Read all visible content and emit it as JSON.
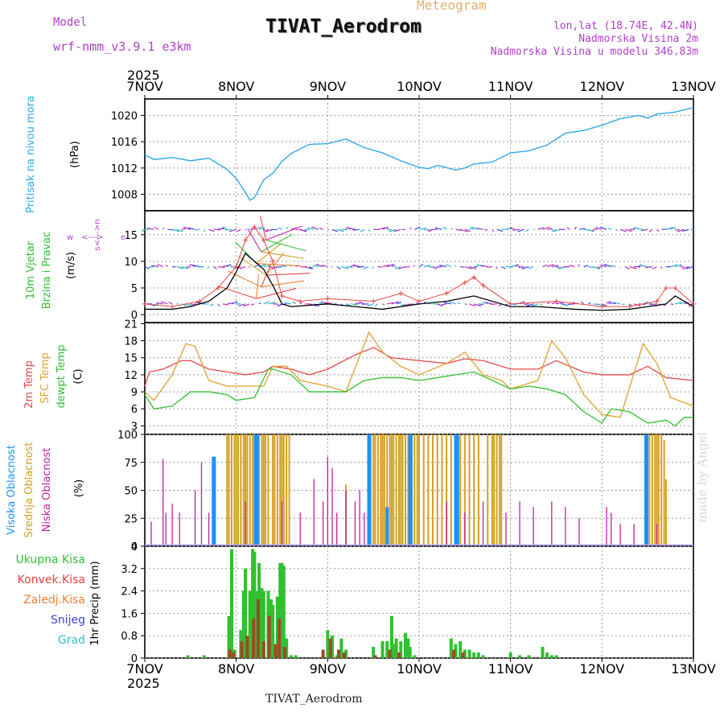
{
  "header": {
    "model_label": "Model",
    "model_name": "wrf-nmm_v3.9.1 e3km",
    "title": "TIVAT_Aerodrom",
    "subtitle": "Meteogram",
    "lonlat": "lon,lat (18.74E, 42.4N)",
    "altitude": "Nadmorska Visina 2m",
    "model_altitude": "Nadmorska Visina u modelu 346.83m"
  },
  "footer": {
    "station": "TIVAT_Aerodrom",
    "credit": "made by Angel"
  },
  "time_axis": {
    "year": "2025",
    "labels": [
      "7NOV",
      "8NOV",
      "9NOV",
      "10NOV",
      "11NOV",
      "12NOV",
      "13NOV"
    ],
    "range_days": [
      0,
      6
    ]
  },
  "colors": {
    "pressure": "#30a8e8",
    "temp": "#e84848",
    "sfc": "#e0a030",
    "dewpt": "#30c030",
    "high_cloud": "#1e90ff",
    "mid_cloud": "#d4a020",
    "low_cloud": "#c020a0",
    "precip_total": "#30c030",
    "precip_conv": "#e84040",
    "precip_frz": "#f08030",
    "snow": "#4040e0",
    "grad": "#30c0c0",
    "wind_text": "#30c030",
    "cloud_text_mid": "#d4a020"
  },
  "chart_data": [
    {
      "type": "line",
      "name": "pressure",
      "ylabel": "Pritisak na nivou mora",
      "unit": "(hPa)",
      "yticks": [
        1008,
        1012,
        1016,
        1020
      ],
      "ylim": [
        1005.5,
        1022.5
      ],
      "series": [
        {
          "name": "MSLP",
          "x": [
            0,
            0.1,
            0.3,
            0.5,
            0.7,
            0.9,
            1.0,
            1.1,
            1.15,
            1.2,
            1.3,
            1.4,
            1.5,
            1.6,
            1.8,
            2.0,
            2.2,
            2.4,
            2.6,
            2.8,
            3.0,
            3.1,
            3.2,
            3.4,
            3.5,
            3.6,
            3.8,
            4.0,
            4.2,
            4.4,
            4.6,
            4.8,
            5.0,
            5.2,
            5.4,
            5.5,
            5.6,
            5.8,
            6.0
          ],
          "values": [
            1014.0,
            1013.3,
            1013.6,
            1013.1,
            1013.5,
            1011.8,
            1010.4,
            1008.3,
            1007.1,
            1007.5,
            1010.2,
            1011.2,
            1013.0,
            1014.2,
            1015.6,
            1015.7,
            1016.4,
            1015.1,
            1014.3,
            1013.1,
            1012.1,
            1011.9,
            1012.4,
            1011.7,
            1012.0,
            1012.6,
            1012.9,
            1014.3,
            1014.6,
            1015.5,
            1017.3,
            1017.7,
            1018.5,
            1019.5,
            1020.0,
            1019.6,
            1020.2,
            1020.5,
            1021.2
          ]
        }
      ]
    },
    {
      "type": "line",
      "name": "wind",
      "ylabel": "10m Vjetar",
      "ylabel2": "Brzina i Pravac",
      "unit": "(m/s)",
      "legend": [
        "w",
        "e",
        "<--->",
        "s<--->n"
      ],
      "yticks": [
        0,
        5,
        10,
        15
      ],
      "ylim": [
        -1.5,
        19.5
      ],
      "barb_rows": [
        2,
        9,
        16
      ],
      "series": [
        {
          "name": "speed",
          "x": [
            0,
            0.3,
            0.5,
            0.7,
            0.9,
            1.0,
            1.1,
            1.2,
            1.3,
            1.4,
            1.5,
            1.6,
            2.0,
            2.3,
            2.6,
            3.0,
            3.3,
            3.6,
            4.0,
            4.3,
            4.7,
            5.0,
            5.3,
            5.7,
            5.8,
            6.0
          ],
          "values": [
            1.0,
            1.0,
            1.5,
            2.5,
            5.0,
            8.0,
            11.5,
            10.0,
            8.5,
            5.5,
            2.0,
            1.5,
            2.0,
            1.5,
            1.0,
            2.0,
            2.5,
            3.5,
            1.5,
            1.5,
            1.0,
            0.8,
            1.0,
            2.0,
            3.5,
            1.5
          ]
        },
        {
          "name": "gust",
          "x": [
            0,
            0.3,
            0.6,
            0.8,
            1.0,
            1.1,
            1.2,
            1.3,
            1.4,
            1.5,
            1.7,
            2.0,
            2.5,
            2.8,
            3.0,
            3.3,
            3.5,
            3.6,
            3.7,
            4.0,
            4.5,
            5.0,
            5.3,
            5.6,
            5.7,
            5.8,
            6.0
          ],
          "values": [
            2.0,
            1.5,
            2.5,
            5.0,
            9.0,
            14.0,
            16.5,
            14.0,
            10.0,
            3.5,
            2.5,
            3.0,
            2.5,
            4.0,
            2.5,
            4.0,
            6.0,
            7.0,
            5.5,
            2.0,
            2.5,
            1.5,
            1.5,
            2.5,
            5.0,
            5.0,
            2.0
          ]
        }
      ]
    },
    {
      "type": "line",
      "name": "temperature",
      "ylabel": "2m Temp",
      "ylabel2": "SFC Temp",
      "ylabel3": "dewpt Temp",
      "unit": "(C)",
      "yticks": [
        3,
        6,
        9,
        12,
        15,
        18,
        21
      ],
      "ylim": [
        1.5,
        21.2
      ],
      "series": [
        {
          "name": "2m Temp",
          "x": [
            0,
            0.05,
            0.2,
            0.4,
            0.5,
            0.7,
            0.9,
            1.1,
            1.3,
            1.4,
            1.6,
            1.8,
            2.0,
            2.3,
            2.5,
            2.7,
            3.0,
            3.3,
            3.5,
            3.7,
            4.0,
            4.3,
            4.5,
            4.8,
            5.0,
            5.3,
            5.5,
            5.7,
            6.0
          ],
          "values": [
            10.0,
            12.5,
            13.0,
            14.5,
            14.5,
            13.0,
            12.5,
            12.0,
            12.5,
            13.5,
            13.0,
            12.0,
            13.0,
            15.5,
            16.8,
            15.0,
            14.5,
            14.0,
            14.8,
            14.5,
            13.0,
            13.0,
            14.5,
            12.5,
            12.0,
            12.0,
            13.5,
            11.5,
            11.0
          ]
        },
        {
          "name": "SFC Temp",
          "x": [
            0,
            0.1,
            0.3,
            0.45,
            0.55,
            0.7,
            0.9,
            1.1,
            1.3,
            1.4,
            1.55,
            1.7,
            2.0,
            2.2,
            2.45,
            2.6,
            2.8,
            3.0,
            3.3,
            3.5,
            3.7,
            3.9,
            4.0,
            4.3,
            4.45,
            4.6,
            4.8,
            5.0,
            5.2,
            5.45,
            5.6,
            5.75,
            6.0
          ],
          "values": [
            9.0,
            7.5,
            12.0,
            17.5,
            17.0,
            11.0,
            10.0,
            10.0,
            10.0,
            13.5,
            13.5,
            11.0,
            10.0,
            9.0,
            19.5,
            16.0,
            13.5,
            12.0,
            14.0,
            16.0,
            12.0,
            11.0,
            9.5,
            11.0,
            18.0,
            15.0,
            8.5,
            5.0,
            4.5,
            17.5,
            14.0,
            8.0,
            6.5
          ]
        },
        {
          "name": "dewpt Temp",
          "x": [
            0,
            0.1,
            0.3,
            0.5,
            0.7,
            0.9,
            1.0,
            1.2,
            1.35,
            1.4,
            1.6,
            1.8,
            2.0,
            2.2,
            2.4,
            2.6,
            2.8,
            3.0,
            3.2,
            3.4,
            3.6,
            3.8,
            4.0,
            4.2,
            4.4,
            4.6,
            4.8,
            5.0,
            5.1,
            5.3,
            5.5,
            5.7,
            5.8,
            5.9,
            6.0
          ],
          "values": [
            8.5,
            6.0,
            6.5,
            9.0,
            9.0,
            8.5,
            7.5,
            8.0,
            13.0,
            13.0,
            12.0,
            9.0,
            9.0,
            9.0,
            11.0,
            11.5,
            11.5,
            11.0,
            11.5,
            12.0,
            12.5,
            11.0,
            9.5,
            10.0,
            9.5,
            8.5,
            5.5,
            3.5,
            6.0,
            5.5,
            3.5,
            4.0,
            3.0,
            4.5,
            4.5
          ]
        }
      ]
    },
    {
      "type": "bar",
      "name": "clouds",
      "ylabel": "Visoka Oblacnost",
      "ylabel2": "Srednja Oblacnost",
      "ylabel3": "Niska Oblacnost",
      "unit": "(%)",
      "yticks": [
        0,
        25,
        50,
        75,
        100
      ],
      "ylim": [
        0,
        100
      ],
      "series": [
        {
          "name": "Visoka Oblacnost (high)",
          "x": [
            0.75,
            0.76,
            1.21,
            1.22,
            1.23,
            2.45,
            2.46,
            2.65,
            2.9,
            2.91,
            3.4,
            3.41,
            3.42,
            5.48,
            5.49
          ],
          "values": [
            80,
            80,
            100,
            100,
            100,
            100,
            100,
            35,
            100,
            100,
            100,
            100,
            100,
            100,
            100
          ]
        },
        {
          "name": "Srednja Oblacnost (mid)",
          "x": [
            0.9,
            0.92,
            0.95,
            0.98,
            1.0,
            1.02,
            1.05,
            1.08,
            1.1,
            1.12,
            1.15,
            1.18,
            1.2,
            1.25,
            1.28,
            1.3,
            1.32,
            1.35,
            1.4,
            1.42,
            1.45,
            1.48,
            1.5,
            1.52,
            1.55,
            1.58,
            2.2,
            2.45,
            2.5,
            2.52,
            2.55,
            2.58,
            2.6,
            2.62,
            2.65,
            2.68,
            2.7,
            2.72,
            2.75,
            2.78,
            2.8,
            2.82,
            2.85,
            2.88,
            2.9,
            2.92,
            2.95,
            2.98,
            3.0,
            3.05,
            3.1,
            3.15,
            3.2,
            3.25,
            3.3,
            3.35,
            3.4,
            3.45,
            3.5,
            3.55,
            3.6,
            3.65,
            3.75,
            3.8,
            3.82,
            3.85,
            3.88,
            3.9,
            5.5,
            5.52,
            5.55,
            5.58,
            5.6,
            5.62,
            5.65,
            5.68,
            5.7
          ],
          "values": [
            100,
            100,
            100,
            100,
            100,
            100,
            100,
            100,
            100,
            100,
            100,
            100,
            100,
            100,
            100,
            100,
            100,
            100,
            100,
            100,
            100,
            100,
            100,
            100,
            100,
            100,
            55,
            100,
            100,
            100,
            100,
            100,
            100,
            100,
            100,
            100,
            100,
            100,
            100,
            100,
            100,
            100,
            100,
            100,
            100,
            100,
            100,
            100,
            100,
            100,
            100,
            100,
            100,
            100,
            100,
            100,
            100,
            100,
            100,
            100,
            100,
            100,
            100,
            100,
            100,
            100,
            100,
            100,
            100,
            100,
            100,
            100,
            100,
            100,
            100,
            95,
            60
          ]
        },
        {
          "name": "Niska Oblacnost (low)",
          "x": [
            0.07,
            0.2,
            0.23,
            0.3,
            0.38,
            0.55,
            0.62,
            0.7,
            1.1,
            1.5,
            1.7,
            1.85,
            1.95,
            2.0,
            2.05,
            2.1,
            2.2,
            2.3,
            2.35,
            2.4,
            3.3,
            3.5,
            3.7,
            3.95,
            4.1,
            4.25,
            4.45,
            4.6,
            4.75,
            5.05,
            5.1,
            5.2,
            5.35,
            5.6
          ],
          "values": [
            22,
            78,
            30,
            38,
            30,
            50,
            75,
            30,
            40,
            40,
            30,
            60,
            40,
            80,
            70,
            30,
            50,
            40,
            50,
            30,
            40,
            30,
            40,
            30,
            40,
            35,
            40,
            35,
            25,
            35,
            30,
            20,
            20,
            20
          ]
        }
      ]
    },
    {
      "type": "bar",
      "name": "precipitation",
      "legend": [
        "Ukupna Kisa",
        "Konvek.Kisa",
        "Zaledj.Kisa",
        "Snijeg",
        "Grad"
      ],
      "unit": "1hr Precip (mm)",
      "yticks": [
        0,
        0.8,
        1.6,
        2.4,
        3.2,
        4
      ],
      "ylim": [
        0,
        4.0
      ],
      "series": [
        {
          "name": "Ukupna Kisa",
          "x": [
            0.47,
            0.65,
            0.92,
            0.95,
            0.98,
            1.05,
            1.08,
            1.1,
            1.15,
            1.18,
            1.2,
            1.22,
            1.25,
            1.28,
            1.3,
            1.35,
            1.38,
            1.4,
            1.42,
            1.45,
            1.48,
            1.5,
            1.52,
            1.55,
            1.6,
            1.65,
            2.0,
            2.05,
            2.1,
            2.15,
            2.2,
            2.5,
            2.6,
            2.65,
            2.7,
            2.72,
            2.75,
            2.8,
            2.85,
            2.88,
            2.9,
            2.95,
            3.35,
            3.4,
            3.45,
            3.5,
            3.55,
            3.6,
            3.65,
            3.7,
            4.0,
            4.1,
            4.2,
            4.35,
            4.4,
            4.45,
            4.5
          ],
          "values": [
            0.1,
            0.1,
            1.5,
            3.9,
            0.3,
            1.0,
            2.4,
            3.2,
            2.4,
            3.9,
            3.8,
            2.4,
            3.4,
            2.5,
            2.4,
            2.4,
            2.1,
            1.9,
            0.3,
            2.2,
            3.4,
            3.4,
            3.3,
            0.7,
            0.1,
            0.1,
            1.0,
            0.8,
            0.1,
            0.7,
            0.3,
            0.4,
            0.6,
            0.6,
            1.5,
            0.5,
            0.7,
            0.6,
            0.9,
            0.7,
            0.4,
            0.1,
            0.7,
            0.5,
            0.6,
            0.3,
            0.3,
            0.2,
            0.2,
            0.1,
            0.2,
            0.1,
            0.1,
            0.4,
            0.2,
            0.1,
            0.1
          ]
        },
        {
          "name": "Konvek.Kisa",
          "x": [
            0.93,
            0.97,
            1.06,
            1.12,
            1.19,
            1.24,
            1.3,
            1.36,
            1.43,
            1.47,
            1.53,
            1.95,
            2.03,
            2.12,
            2.18,
            2.52,
            2.68,
            2.78,
            3.38,
            3.48
          ],
          "values": [
            0.3,
            0.2,
            0.6,
            0.8,
            1.4,
            2.1,
            0.6,
            1.5,
            0.5,
            1.4,
            0.4,
            0.3,
            0.7,
            0.3,
            0.2,
            0.1,
            0.3,
            0.2,
            0.3,
            0.2
          ]
        }
      ]
    }
  ]
}
